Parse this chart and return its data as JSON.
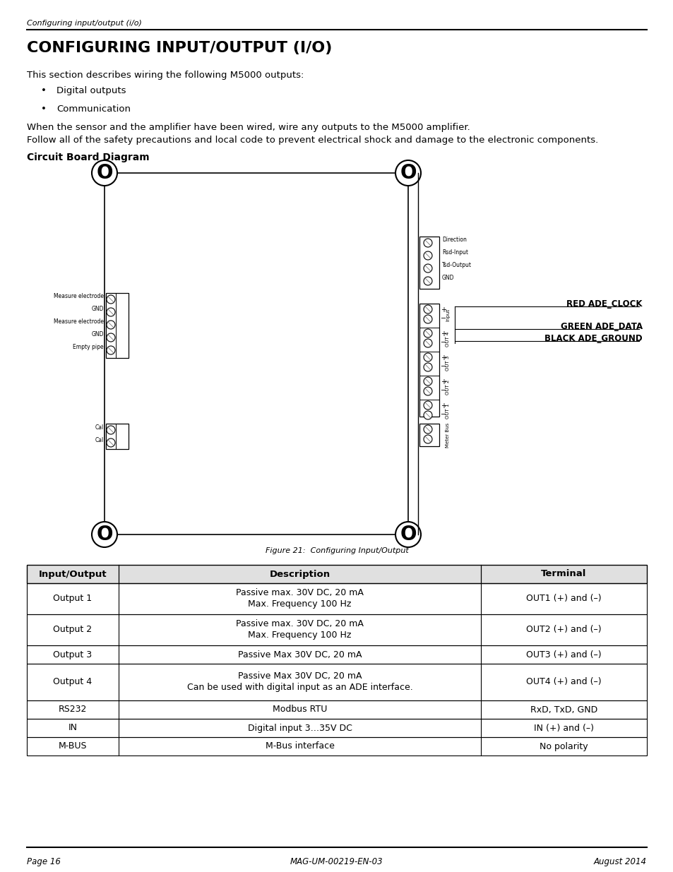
{
  "page_header_italic": "Configuring input/output (i/o)",
  "main_title": "CONFIGURING INPUT/OUTPUT (I/O)",
  "intro_text": "This section describes wiring the following M5000 outputs:",
  "bullets": [
    "Digital outputs",
    "Communication"
  ],
  "body_text1": "When the sensor and the amplifier have been wired, wire any outputs to the M5000 amplifier.",
  "body_text2": "Follow all of the safety precautions and local code to prevent electrical shock and damage to the electronic components.",
  "diagram_subtitle": "Circuit Board Diagram",
  "figure_caption": "Figure 21:  Configuring Input/Output",
  "left_labels": [
    "Measure electrode",
    "GND",
    "Measure electrode",
    "GND",
    "Empty pipe"
  ],
  "left_cal_labels": [
    "Cal",
    "Cal"
  ],
  "right_top_labels": [
    "Direction",
    "Rsd-Input",
    "Tsd-Output",
    "GND"
  ],
  "right_wire_labels": [
    "RED ADE_CLOCK",
    "GREEN ADE_DATA",
    "BLACK ADE_GROUND"
  ],
  "right_section_labels": [
    "Input",
    "OUT 4",
    "OUT 3",
    "OUT 2",
    "OUT 1",
    "Meter Bus"
  ],
  "table_headers": [
    "Input/Output",
    "Description",
    "Terminal"
  ],
  "table_rows": [
    [
      "Output 1",
      "Passive max. 30V DC, 20 mA\nMax. Frequency 100 Hz",
      "OUT1 (+) and (–)"
    ],
    [
      "Output 2",
      "Passive max. 30V DC, 20 mA\nMax. Frequency 100 Hz",
      "OUT2 (+) and (–)"
    ],
    [
      "Output 3",
      "Passive Max 30V DC, 20 mA",
      "OUT3 (+) and (–)"
    ],
    [
      "Output 4",
      "Passive Max 30V DC, 20 mA\nCan be used with digital input as an ADE interface.",
      "OUT4 (+) and (–)"
    ],
    [
      "RS232",
      "Modbus RTU",
      "RxD, TxD, GND"
    ],
    [
      "IN",
      "Digital input 3…35V DC",
      "IN (+) and (–)"
    ],
    [
      "M-BUS",
      "M-Bus interface",
      "No polarity"
    ]
  ],
  "footer_left": "Page 16",
  "footer_center": "MAG-UM-00219-EN-03",
  "footer_right": "August 2014",
  "bg_color": "#ffffff",
  "text_color": "#000000"
}
